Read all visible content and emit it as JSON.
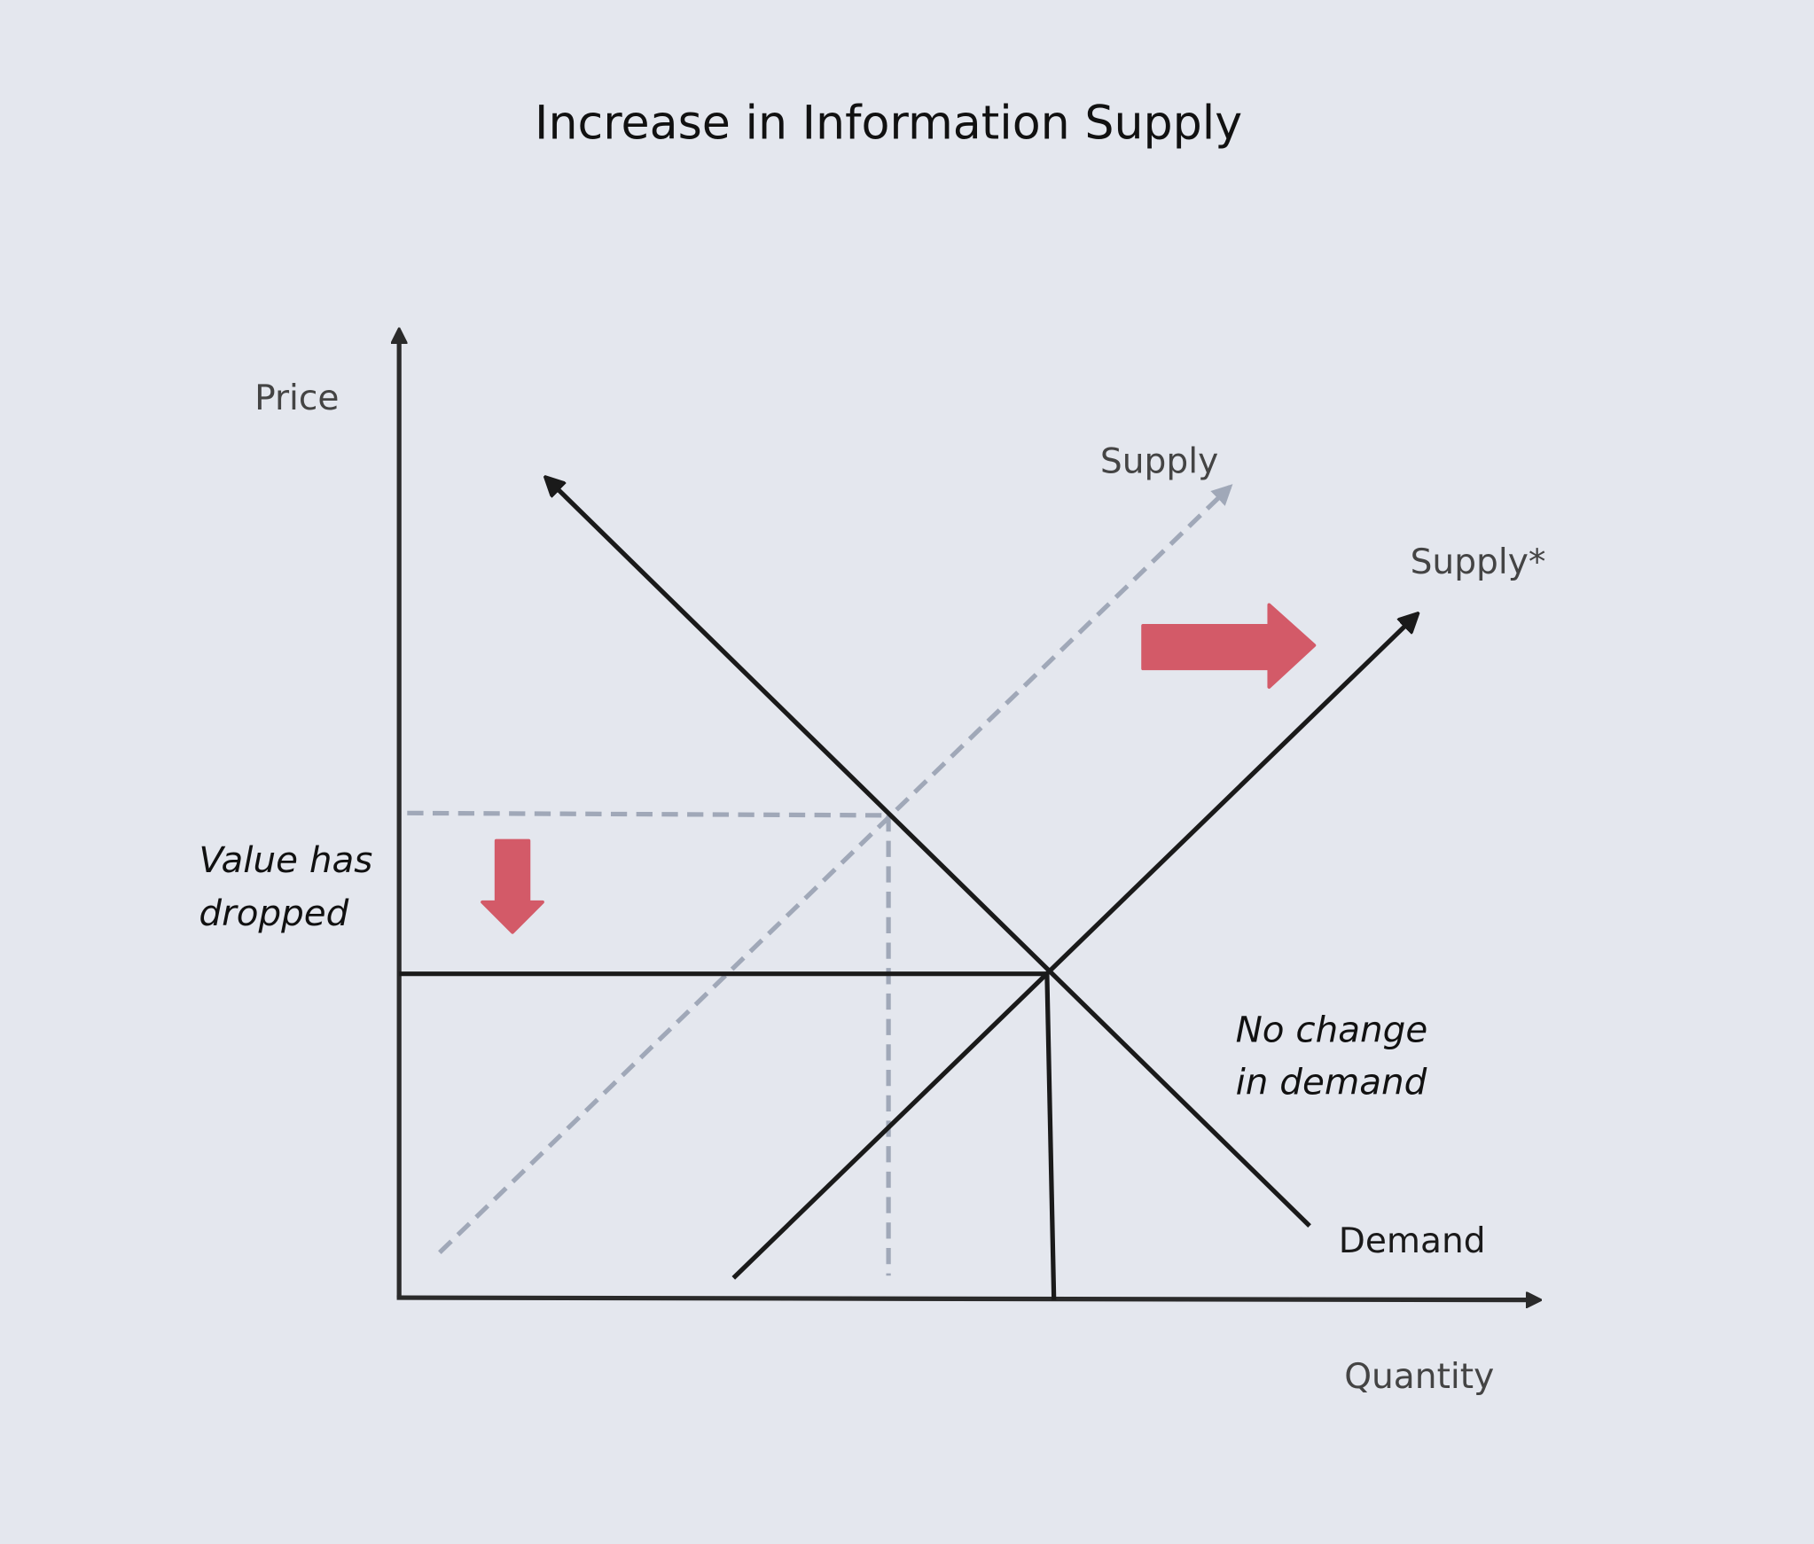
{
  "title": "Increase in Information Supply",
  "axes": {
    "y_label": "Price",
    "x_label": "Quantity"
  },
  "curves": {
    "supply": "Supply",
    "supply_shifted": "Supply*",
    "demand": "Demand"
  },
  "notes": {
    "value_line1": "Value has",
    "value_line2": "dropped",
    "demand_line1": "No change",
    "demand_line2": "in demand"
  },
  "colors": {
    "background": "#e4e7ee",
    "shift_arrow": "#d35a68",
    "old_supply": "#a0a8b8",
    "line": "#1a1a1a"
  }
}
